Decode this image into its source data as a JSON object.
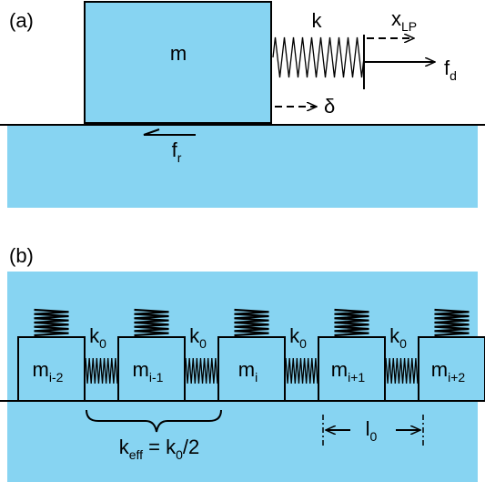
{
  "panel_a": {
    "label": "(a)",
    "mass": "m",
    "spring": "k",
    "displacement_lp": {
      "base": "x",
      "sub": "LP"
    },
    "drive_force": {
      "base": "f",
      "sub": "d"
    },
    "delta": "δ",
    "friction": {
      "base": "f",
      "sub": "r"
    }
  },
  "panel_b": {
    "label": "(b)",
    "masses": [
      {
        "base": "m",
        "sub": "i-2"
      },
      {
        "base": "m",
        "sub": "i-1"
      },
      {
        "base": "m",
        "sub": "i"
      },
      {
        "base": "m",
        "sub": "i+1"
      },
      {
        "base": "m",
        "sub": "i+2"
      }
    ],
    "springs": [
      {
        "base": "k",
        "sub": "0"
      },
      {
        "base": "k",
        "sub": "0"
      },
      {
        "base": "k",
        "sub": "0"
      },
      {
        "base": "k",
        "sub": "0"
      }
    ],
    "effective": {
      "k": "k",
      "k_sub": "eff",
      "eq": " = k",
      "k0_sub": "0",
      "tail": "/2"
    },
    "spacing": {
      "base": "l",
      "sub": "0"
    }
  }
}
